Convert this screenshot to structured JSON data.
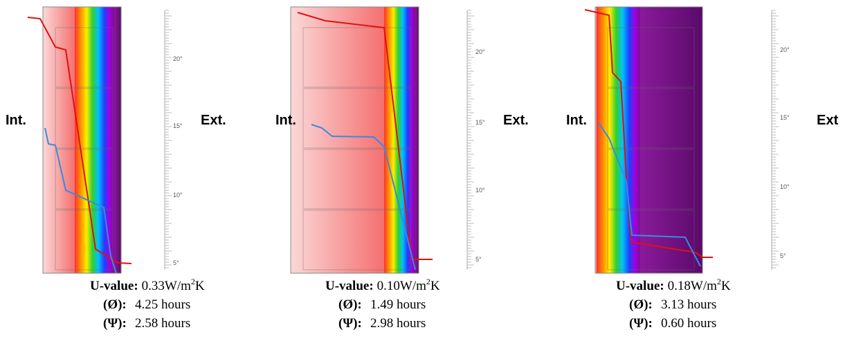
{
  "panels": [
    {
      "int_label": "Int.",
      "ext_label": "Ext.",
      "scale_labels": [
        "20°",
        "15°",
        "10°",
        "5°"
      ],
      "u_label": "U-value:",
      "u_value": {
        "main": "0.33W/m",
        "sup": "2",
        "tail": "K"
      },
      "phase_label": "(Ø):",
      "phase_value": "4.25 hours",
      "decrement_label": "(Ψ):",
      "decrement_value": "2.58 hours"
    },
    {
      "int_label": "Int.",
      "ext_label": "Ext.",
      "scale_labels": [
        "20°",
        "15°",
        "10°",
        "5°"
      ],
      "u_label": "U-value:",
      "u_value": {
        "main": "0.10W/m",
        "sup": "2",
        "tail": "K"
      },
      "phase_label": "(Ø):",
      "phase_value": "1.49 hours",
      "decrement_label": "(Ψ):",
      "decrement_value": "2.98 hours"
    },
    {
      "int_label": "Int.",
      "ext_label": "Ext",
      "scale_labels": [
        "20°",
        "15°",
        "10°",
        "5°"
      ],
      "u_label": "U-value:",
      "u_value": {
        "main": "0.18W/m",
        "sup": "2",
        "tail": "K"
      },
      "phase_label": "(Ø):",
      "phase_value": "3.13 hours",
      "decrement_label": "(Ψ):",
      "decrement_value": "0.60 hours"
    }
  ]
}
